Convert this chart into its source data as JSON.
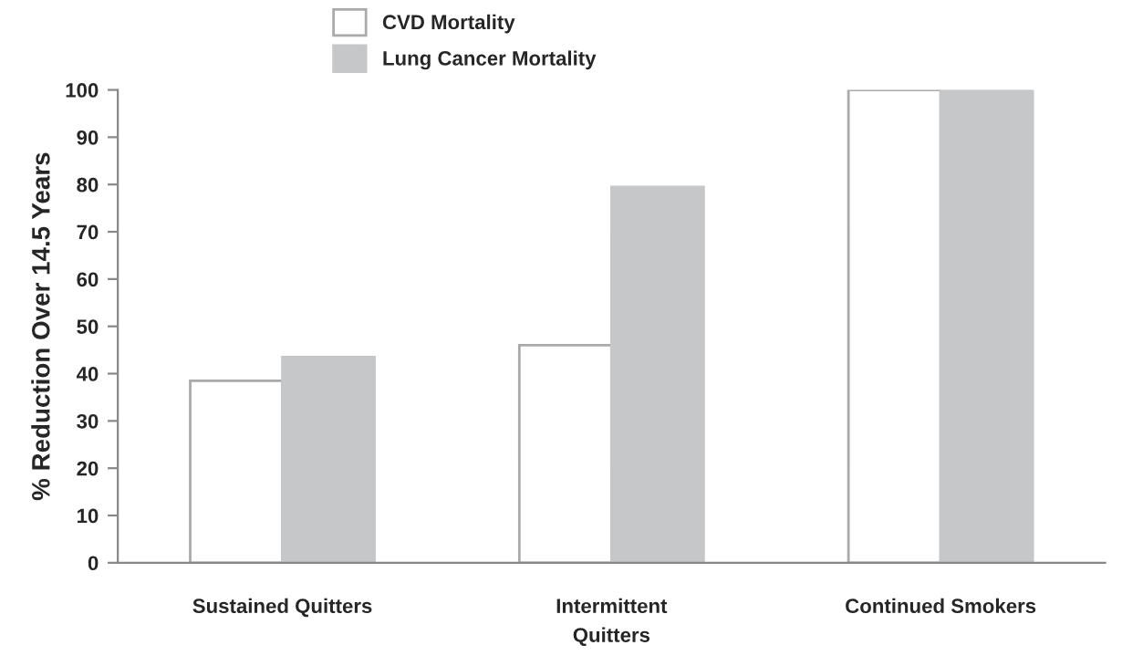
{
  "chart_data": {
    "type": "bar",
    "ylabel": "% Reduction Over 14.5 Years",
    "xlabel": "Quitters",
    "categories": [
      "Sustained Quitters",
      "Intermittent",
      "Continued Smokers"
    ],
    "series": [
      {
        "name": "CVD Mortality",
        "color": "#ffffff",
        "values": [
          38.5,
          46,
          100
        ]
      },
      {
        "name": "Lung Cancer Mortality",
        "color": "#c6c7c9",
        "values": [
          43.5,
          79.5,
          100
        ]
      }
    ],
    "ylim": [
      0,
      100
    ],
    "yticks": [
      0,
      10,
      20,
      30,
      40,
      50,
      60,
      70,
      80,
      90,
      100
    ],
    "grid": false,
    "legend": "top left"
  }
}
